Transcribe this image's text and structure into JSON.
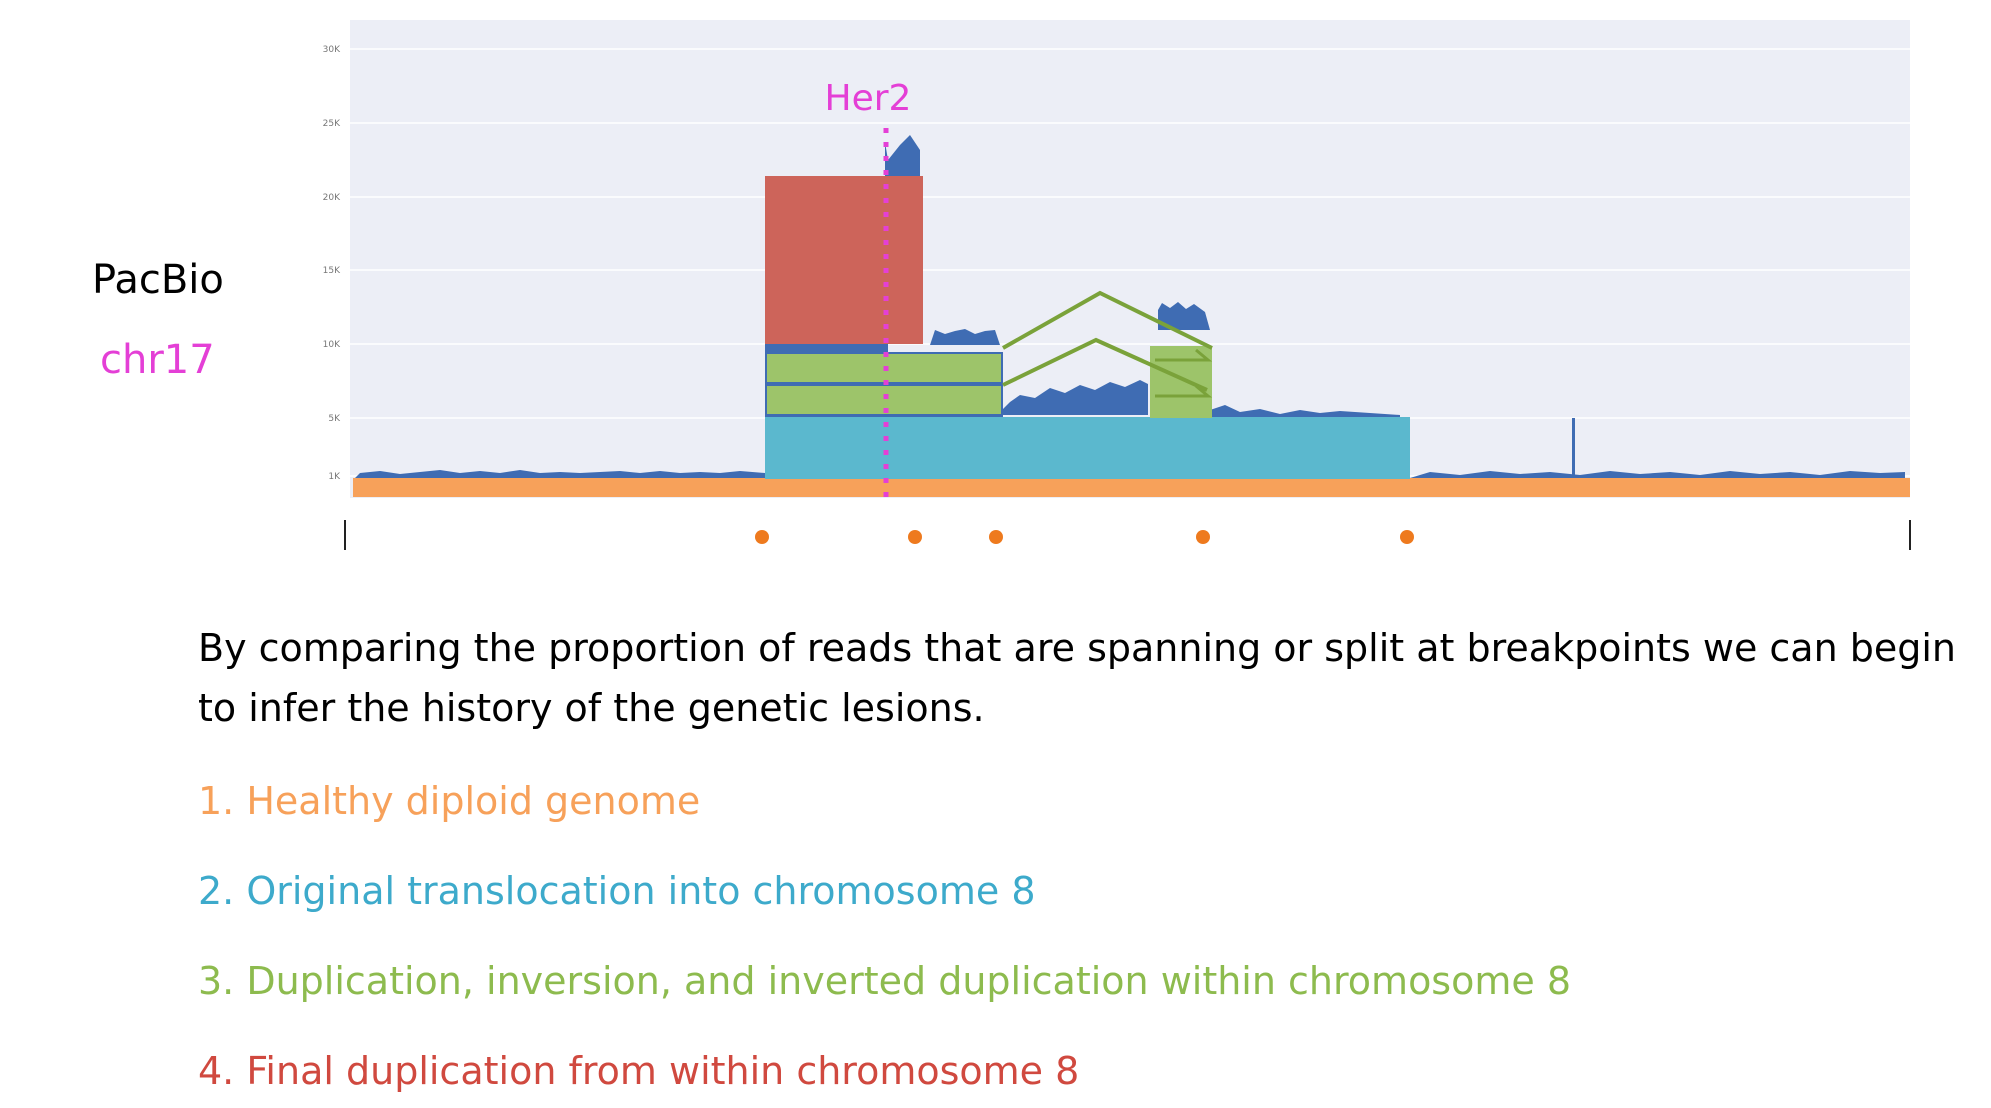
{
  "figure": {
    "gene_label": "Her2",
    "sample_label": "PacBio",
    "chrom_label": "chr17",
    "y_ticks": [
      "30K",
      "25K",
      "20K",
      "15K",
      "10K",
      "5K",
      "1K"
    ],
    "colors": {
      "stage1": "#F7A15A",
      "stage2": "#5BB8CE",
      "stage3": "#9DC46A",
      "stage4": "#CD645A",
      "coverage": "#3F6CB3",
      "gene": "#E43FD6",
      "background": "#ECEEF6"
    },
    "icons": [
      "breakpoint-dot",
      "tick-mark",
      "arrow-outline"
    ],
    "breakpoint_count": 5
  },
  "text": {
    "description": "By comparing the proportion of reads that are spanning or split at breakpoints we can begin to infer the history of the genetic lesions.",
    "steps": [
      "1. Healthy diploid genome",
      "2. Original translocation into chromosome 8",
      "3. Duplication, inversion, and inverted duplication within chromosome 8",
      "4. Final duplication from within chromosome 8"
    ]
  }
}
